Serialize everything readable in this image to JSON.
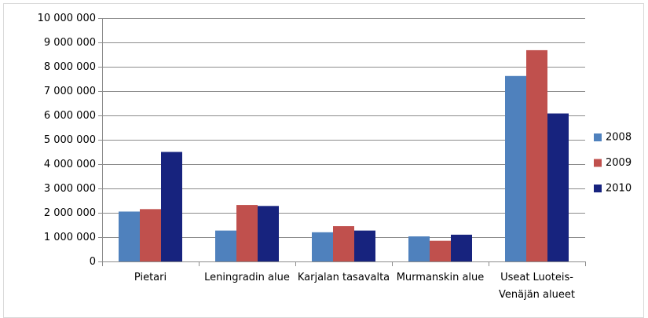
{
  "chart_data": {
    "type": "bar",
    "categories": [
      "Pietari",
      "Leningradin alue",
      "Karjalan tasavalta",
      "Murmanskin alue",
      "Useat Luoteis-Venäjän alueet"
    ],
    "series": [
      {
        "name": "2008",
        "color": "#4f81bd",
        "values": [
          2050000,
          1270000,
          1200000,
          1030000,
          7620000
        ]
      },
      {
        "name": "2009",
        "color": "#c0504d",
        "values": [
          2150000,
          2320000,
          1450000,
          850000,
          8680000
        ]
      },
      {
        "name": "2010",
        "color": "#17237e",
        "values": [
          4500000,
          2280000,
          1270000,
          1100000,
          6080000
        ]
      }
    ],
    "ylim": [
      0,
      10000000
    ],
    "yticks": [
      0,
      {
        "value": 1000000,
        "label": "1 000 000"
      },
      {
        "value": 2000000,
        "label": "2 000 000"
      },
      {
        "value": 3000000,
        "label": "3 000 000"
      },
      {
        "value": 4000000,
        "label": "4 000 000"
      },
      {
        "value": 5000000,
        "label": "5 000 000"
      },
      {
        "value": 6000000,
        "label": "6 000 000"
      },
      {
        "value": 7000000,
        "label": "7 000 000"
      },
      {
        "value": 8000000,
        "label": "8 000 000"
      },
      {
        "value": 9000000,
        "label": "9 000 000"
      },
      {
        "value": 10000000,
        "label": "10 000 000"
      }
    ],
    "grid": true,
    "legend": "right"
  }
}
